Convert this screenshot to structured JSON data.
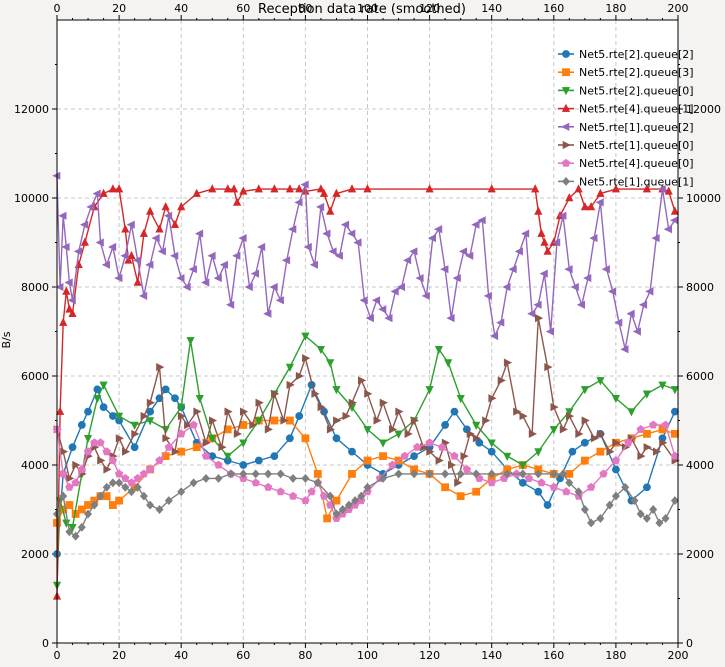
{
  "chart_data": {
    "type": "line",
    "title": "Reception data rate (smoothed)",
    "xlabel": "",
    "ylabel": "B/s",
    "xlim": [
      0,
      200
    ],
    "ylim": [
      0,
      14000
    ],
    "x_ticks": [
      0,
      20,
      40,
      60,
      80,
      100,
      120,
      140,
      160,
      180,
      200
    ],
    "y_ticks": [
      0,
      2000,
      4000,
      6000,
      8000,
      10000,
      12000
    ],
    "grid": true,
    "legend_position": "top-right",
    "series": [
      {
        "name": "Net5.rte[2].queue[2]",
        "color": "#1f77b4",
        "marker": "circle",
        "x": [
          0,
          2,
          5,
          8,
          10,
          13,
          15,
          18,
          20,
          25,
          30,
          33,
          35,
          38,
          40,
          45,
          50,
          55,
          60,
          65,
          70,
          75,
          78,
          82,
          86,
          90,
          95,
          100,
          105,
          110,
          115,
          120,
          125,
          128,
          132,
          136,
          140,
          145,
          150,
          155,
          158,
          162,
          166,
          170,
          175,
          180,
          185,
          190,
          195,
          199
        ],
        "y": [
          2000,
          3800,
          4400,
          4900,
          5200,
          5700,
          5300,
          5100,
          5000,
          4400,
          5200,
          5500,
          5700,
          5500,
          5300,
          4500,
          4200,
          4100,
          4000,
          4100,
          4200,
          4600,
          5100,
          5800,
          5200,
          4600,
          4300,
          4000,
          3800,
          4000,
          4200,
          4400,
          4900,
          5200,
          4800,
          4500,
          4300,
          3900,
          3600,
          3400,
          3100,
          3700,
          4300,
          4500,
          4700,
          3900,
          3200,
          3500,
          4600,
          5200
        ]
      },
      {
        "name": "Net5.rte[2].queue[3]",
        "color": "#ff7f0e",
        "marker": "square",
        "x": [
          0,
          2,
          4,
          6,
          8,
          10,
          12,
          14,
          16,
          18,
          20,
          25,
          30,
          35,
          40,
          45,
          50,
          55,
          60,
          65,
          70,
          75,
          80,
          84,
          87,
          90,
          95,
          100,
          105,
          110,
          115,
          120,
          125,
          130,
          135,
          140,
          145,
          150,
          155,
          160,
          165,
          170,
          175,
          180,
          185,
          190,
          195,
          199
        ],
        "y": [
          2700,
          3000,
          3100,
          2900,
          3000,
          3100,
          3200,
          3300,
          3300,
          3100,
          3200,
          3500,
          3900,
          4200,
          4300,
          4400,
          4600,
          4800,
          4900,
          5000,
          5000,
          5000,
          4600,
          3800,
          2800,
          3200,
          3800,
          4100,
          4200,
          4100,
          3900,
          3800,
          3500,
          3300,
          3400,
          3700,
          3900,
          4000,
          3900,
          3800,
          3800,
          4100,
          4300,
          4500,
          4600,
          4700,
          4800,
          4700
        ]
      },
      {
        "name": "Net5.rte[2].queue[0]",
        "color": "#2ca02c",
        "marker": "triangle-down",
        "x": [
          0,
          1,
          3,
          5,
          8,
          10,
          13,
          15,
          20,
          25,
          30,
          35,
          40,
          43,
          46,
          50,
          55,
          60,
          65,
          70,
          75,
          80,
          85,
          88,
          90,
          95,
          100,
          105,
          110,
          115,
          120,
          123,
          126,
          130,
          135,
          140,
          145,
          150,
          155,
          160,
          165,
          170,
          175,
          180,
          185,
          190,
          195,
          199
        ],
        "y": [
          1300,
          3200,
          2700,
          2600,
          3800,
          4600,
          5500,
          5800,
          5100,
          4900,
          5000,
          4800,
          5300,
          6800,
          5500,
          4600,
          4200,
          4500,
          5000,
          5600,
          6200,
          6900,
          6600,
          6300,
          5700,
          5300,
          4800,
          4500,
          4700,
          5000,
          5700,
          6600,
          6300,
          5500,
          4900,
          4500,
          4200,
          4000,
          4300,
          4800,
          5200,
          5700,
          5900,
          5500,
          5200,
          5600,
          5800,
          5700
        ]
      },
      {
        "name": "Net5.rte[4].queue[1]",
        "color": "#d62728",
        "marker": "triangle-up",
        "x": [
          0,
          1,
          2,
          3,
          4,
          5,
          7,
          9,
          12,
          15,
          18,
          20,
          22,
          23,
          24,
          26,
          28,
          30,
          33,
          35,
          38,
          40,
          45,
          50,
          55,
          57,
          58,
          60,
          65,
          70,
          75,
          78,
          80,
          85,
          86,
          88,
          90,
          95,
          100,
          120,
          140,
          154,
          155,
          156,
          157,
          158,
          160,
          162,
          165,
          168,
          170,
          172,
          175,
          180,
          190,
          195,
          197,
          199
        ],
        "y": [
          1050,
          5200,
          7200,
          7900,
          7500,
          7400,
          8500,
          9000,
          9800,
          10100,
          10200,
          10200,
          9300,
          8600,
          8700,
          8100,
          9200,
          9700,
          9300,
          9800,
          9400,
          9800,
          10100,
          10200,
          10200,
          10200,
          9900,
          10150,
          10200,
          10200,
          10200,
          10200,
          10150,
          10200,
          10100,
          9700,
          10100,
          10200,
          10200,
          10200,
          10200,
          10200,
          9700,
          9200,
          9000,
          8800,
          9000,
          9600,
          10000,
          10200,
          9800,
          9800,
          10100,
          10200,
          10200,
          10200,
          10150,
          9700
        ]
      },
      {
        "name": "Net5.rte[1].queue[2]",
        "color": "#9467bd",
        "marker": "triangle-left",
        "x": [
          0,
          1,
          2,
          3,
          4,
          5,
          7,
          9,
          11,
          13,
          14,
          16,
          18,
          20,
          22,
          24,
          26,
          28,
          30,
          32,
          34,
          36,
          38,
          40,
          42,
          44,
          46,
          48,
          50,
          52,
          54,
          56,
          58,
          60,
          62,
          64,
          66,
          68,
          70,
          72,
          74,
          76,
          78,
          80,
          81,
          83,
          85,
          87,
          89,
          91,
          93,
          95,
          97,
          99,
          101,
          103,
          105,
          107,
          109,
          111,
          113,
          115,
          117,
          119,
          121,
          123,
          125,
          127,
          129,
          131,
          133,
          135,
          137,
          139,
          141,
          143,
          145,
          147,
          149,
          151,
          153,
          155,
          157,
          159,
          161,
          163,
          165,
          167,
          169,
          171,
          173,
          175,
          177,
          179,
          181,
          183,
          185,
          187,
          189,
          191,
          193,
          195,
          197,
          199
        ],
        "y": [
          10500,
          8000,
          9600,
          8900,
          8100,
          7700,
          8800,
          9400,
          9800,
          10100,
          9000,
          8500,
          8900,
          8200,
          8700,
          9400,
          8600,
          7800,
          8500,
          9100,
          8800,
          9600,
          8700,
          8200,
          8000,
          8400,
          9200,
          8100,
          8700,
          8200,
          8500,
          7600,
          8700,
          9100,
          8000,
          8300,
          8900,
          7400,
          8000,
          7700,
          8600,
          9300,
          9900,
          10300,
          8900,
          8500,
          9800,
          9200,
          8800,
          8700,
          9400,
          9200,
          9000,
          7700,
          7300,
          7700,
          7500,
          7300,
          7900,
          8000,
          8600,
          8800,
          8200,
          7800,
          9100,
          9300,
          8400,
          7300,
          8200,
          8800,
          8700,
          9400,
          9500,
          7800,
          6900,
          7200,
          8000,
          8400,
          8800,
          9200,
          7400,
          7600,
          8300,
          7000,
          9000,
          9600,
          8400,
          8000,
          7600,
          8200,
          9100,
          9900,
          8400,
          7900,
          7200,
          6600,
          7400,
          7000,
          7600,
          7900,
          9100,
          10200,
          9300,
          9500
        ]
      },
      {
        "name": "Net5.rte[1].queue[0]",
        "color": "#8c564b",
        "marker": "triangle-right",
        "x": [
          0,
          2,
          4,
          6,
          8,
          10,
          12,
          14,
          16,
          18,
          20,
          22,
          25,
          28,
          30,
          33,
          35,
          38,
          40,
          42,
          45,
          48,
          50,
          53,
          55,
          58,
          60,
          63,
          65,
          68,
          70,
          73,
          75,
          78,
          80,
          83,
          85,
          88,
          90,
          93,
          95,
          98,
          100,
          103,
          105,
          108,
          110,
          113,
          115,
          118,
          120,
          123,
          125,
          127,
          129,
          131,
          133,
          135,
          138,
          140,
          143,
          145,
          148,
          150,
          153,
          155,
          158,
          160,
          163,
          165,
          168,
          170,
          173,
          175,
          178,
          180,
          183,
          185,
          188,
          190,
          193,
          195,
          199
        ],
        "y": [
          4800,
          4300,
          3700,
          4000,
          3800,
          4200,
          4400,
          4100,
          3900,
          4200,
          4600,
          4300,
          4700,
          5100,
          5400,
          6200,
          4600,
          4300,
          5100,
          4900,
          5200,
          4500,
          5000,
          4400,
          5200,
          4700,
          5200,
          4900,
          5400,
          4800,
          5600,
          5000,
          5800,
          6000,
          6400,
          5600,
          5300,
          4800,
          5000,
          5100,
          5400,
          5900,
          5600,
          5000,
          5400,
          4800,
          5200,
          4700,
          5000,
          4400,
          4300,
          4100,
          4500,
          4000,
          3600,
          4200,
          4700,
          4600,
          5000,
          5500,
          5900,
          6300,
          5200,
          5100,
          4700,
          7300,
          6200,
          5300,
          4800,
          5100,
          4700,
          5000,
          4600,
          4700,
          4300,
          4500,
          4400,
          4600,
          4200,
          4400,
          4300,
          4500,
          4100
        ]
      },
      {
        "name": "Net5.rte[4].queue[0]",
        "color": "#e377c2",
        "marker": "pentagon",
        "x": [
          0,
          2,
          4,
          6,
          8,
          10,
          12,
          14,
          16,
          18,
          20,
          22,
          24,
          26,
          28,
          30,
          33,
          36,
          40,
          44,
          48,
          52,
          56,
          60,
          64,
          68,
          72,
          76,
          80,
          82,
          84,
          86,
          88,
          90,
          92,
          94,
          96,
          98,
          100,
          104,
          108,
          112,
          116,
          120,
          124,
          128,
          132,
          136,
          140,
          144,
          148,
          152,
          156,
          160,
          164,
          168,
          172,
          176,
          180,
          184,
          188,
          192,
          196,
          199
        ],
        "y": [
          4800,
          3800,
          3500,
          3600,
          3900,
          4300,
          4500,
          4500,
          4300,
          4100,
          3800,
          3700,
          3600,
          3700,
          3800,
          3900,
          4100,
          4400,
          4700,
          4900,
          4200,
          4000,
          3800,
          3700,
          3600,
          3500,
          3400,
          3300,
          3200,
          3400,
          3600,
          3300,
          3100,
          2800,
          2900,
          3000,
          3100,
          3200,
          3400,
          3700,
          4000,
          4200,
          4400,
          4500,
          4400,
          4200,
          3900,
          3700,
          3600,
          3700,
          3800,
          3700,
          3600,
          3500,
          3400,
          3300,
          3500,
          3800,
          4100,
          4500,
          4800,
          4900,
          4900,
          4200
        ]
      },
      {
        "name": "Net5.rte[1].queue[1]",
        "color": "#7f7f7f",
        "marker": "diamond",
        "x": [
          0,
          2,
          4,
          6,
          8,
          10,
          12,
          14,
          16,
          18,
          20,
          22,
          24,
          26,
          28,
          30,
          33,
          36,
          40,
          44,
          48,
          52,
          56,
          60,
          64,
          68,
          72,
          76,
          80,
          84,
          88,
          90,
          92,
          94,
          96,
          98,
          100,
          105,
          110,
          115,
          120,
          125,
          130,
          135,
          140,
          145,
          150,
          155,
          160,
          163,
          165,
          168,
          170,
          172,
          175,
          178,
          180,
          183,
          186,
          188,
          190,
          192,
          194,
          196,
          199
        ],
        "y": [
          2900,
          3300,
          2500,
          2400,
          2600,
          2900,
          3100,
          3300,
          3500,
          3600,
          3600,
          3500,
          3400,
          3500,
          3300,
          3100,
          3000,
          3200,
          3400,
          3600,
          3700,
          3700,
          3800,
          3800,
          3800,
          3800,
          3800,
          3700,
          3700,
          3600,
          3300,
          2900,
          3000,
          3100,
          3200,
          3300,
          3500,
          3700,
          3800,
          3800,
          3800,
          3800,
          3800,
          3800,
          3800,
          3800,
          3800,
          3800,
          3800,
          3800,
          3600,
          3400,
          3000,
          2700,
          2800,
          3100,
          3300,
          3500,
          3200,
          2900,
          2800,
          3000,
          2700,
          2800,
          3200
        ]
      }
    ]
  }
}
